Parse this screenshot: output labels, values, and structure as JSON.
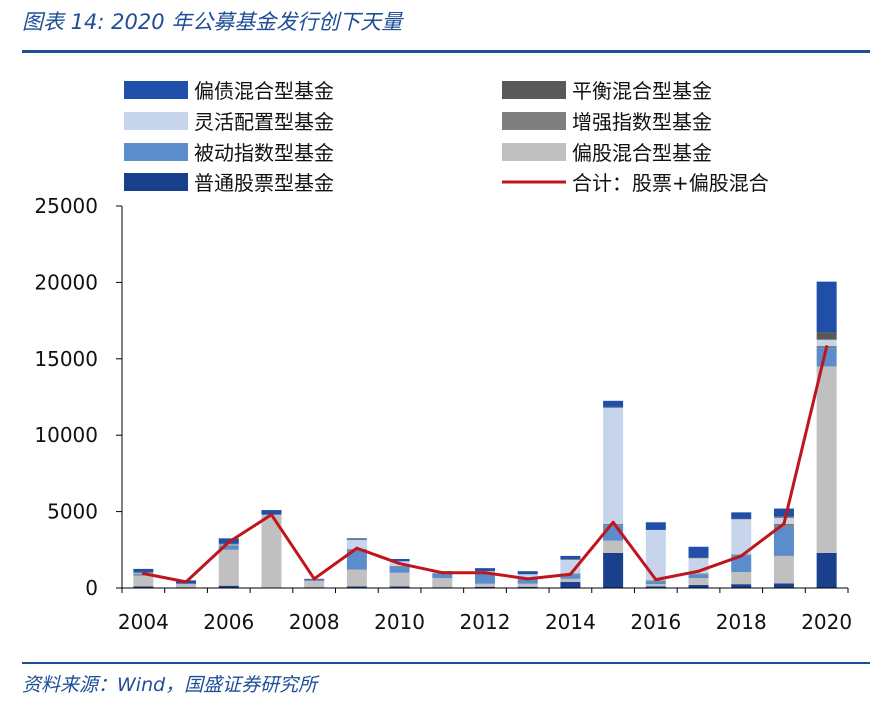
{
  "header": {
    "title": "图表 14:  2020 年公募基金发行创下天量"
  },
  "footer": {
    "source": "资料来源：Wind，国盛证券研究所"
  },
  "chart_data": {
    "type": "bar",
    "stacked": true,
    "title": "图表 14:  2020 年公募基金发行创下天量",
    "xlabel": "",
    "ylabel": "",
    "ylim": [
      0,
      25000
    ],
    "yticks": [
      0,
      5000,
      10000,
      15000,
      20000,
      25000
    ],
    "xticks": [
      "2004",
      "2006",
      "2008",
      "2010",
      "2012",
      "2014",
      "2016",
      "2018",
      "2020"
    ],
    "categories": [
      "2004",
      "2005",
      "2006",
      "2007",
      "2008",
      "2009",
      "2010",
      "2011",
      "2012",
      "2013",
      "2014",
      "2015",
      "2016",
      "2017",
      "2018",
      "2019",
      "2020"
    ],
    "grid": false,
    "legend_position": "top",
    "series": [
      {
        "name": "普通股票型基金",
        "color": "#1a3f8c",
        "values": [
          100,
          50,
          150,
          0,
          50,
          100,
          100,
          50,
          80,
          80,
          400,
          2300,
          100,
          200,
          250,
          300,
          2300
        ]
      },
      {
        "name": "偏股混合型基金",
        "color": "#c0c0c0",
        "values": [
          700,
          200,
          2350,
          4800,
          400,
          1100,
          900,
          600,
          200,
          200,
          200,
          800,
          150,
          450,
          800,
          1800,
          12200
        ]
      },
      {
        "name": "被动指数型基金",
        "color": "#5b8ccc",
        "values": [
          100,
          50,
          250,
          0,
          50,
          1300,
          400,
          300,
          700,
          300,
          300,
          1000,
          200,
          250,
          1100,
          1900,
          1200
        ]
      },
      {
        "name": "增强指数型基金",
        "color": "#7f7f7f",
        "values": [
          50,
          0,
          50,
          0,
          50,
          50,
          50,
          20,
          50,
          50,
          50,
          100,
          50,
          50,
          50,
          200,
          150
        ]
      },
      {
        "name": "灵活配置型基金",
        "color": "#c6d5ec",
        "values": [
          50,
          0,
          50,
          0,
          0,
          600,
          300,
          80,
          70,
          270,
          900,
          7600,
          3300,
          1000,
          2300,
          400,
          400
        ]
      },
      {
        "name": "平衡混合型基金",
        "color": "#595959",
        "values": [
          50,
          0,
          50,
          0,
          0,
          50,
          0,
          0,
          0,
          0,
          50,
          50,
          0,
          50,
          50,
          100,
          500
        ]
      },
      {
        "name": "偏债混合型基金",
        "color": "#1f4fa8",
        "values": [
          200,
          200,
          350,
          300,
          50,
          50,
          150,
          50,
          200,
          200,
          200,
          400,
          500,
          700,
          400,
          500,
          3300
        ]
      }
    ],
    "line_series": {
      "name": "合计：股票+偏股混合",
      "color": "#c0151c",
      "values": [
        950,
        400,
        3000,
        4800,
        600,
        2600,
        1600,
        1000,
        1000,
        600,
        900,
        4300,
        550,
        1100,
        2100,
        4200,
        15800
      ]
    },
    "legend_order": [
      "偏债混合型基金",
      "平衡混合型基金",
      "灵活配置型基金",
      "增强指数型基金",
      "被动指数型基金",
      "偏股混合型基金",
      "普通股票型基金",
      "合计：股票+偏股混合"
    ]
  }
}
